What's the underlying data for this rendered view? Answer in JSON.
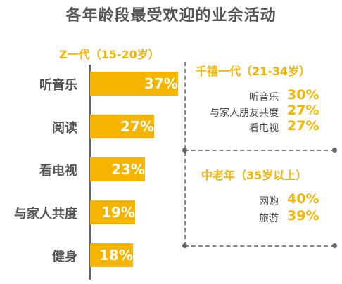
{
  "title": "各年龄段最受欢迎的业余活动",
  "chart_data": {
    "type": "bar",
    "groups": [
      {
        "name": "Z一代（15-20岁）",
        "categories": [
          "听音乐",
          "阅读",
          "看电视",
          "与家人共度",
          "健身"
        ],
        "values": [
          37,
          27,
          23,
          19,
          18
        ],
        "value_labels": [
          "37%",
          "27%",
          "23%",
          "19%",
          "18%"
        ]
      },
      {
        "name": "千禧一代（21-34岁）",
        "categories": [
          "听音乐",
          "与家人朋友共度",
          "看电视"
        ],
        "values": [
          30,
          27,
          27
        ],
        "value_labels": [
          "30%",
          "27%",
          "27%"
        ]
      },
      {
        "name": "中老年（35岁以上）",
        "categories": [
          "网购",
          "旅游"
        ],
        "values": [
          40,
          39
        ],
        "value_labels": [
          "40%",
          "39%"
        ]
      }
    ],
    "unit": "%"
  },
  "colors": {
    "accent": "#f5b400",
    "text": "#555555",
    "axis": "#666666"
  }
}
